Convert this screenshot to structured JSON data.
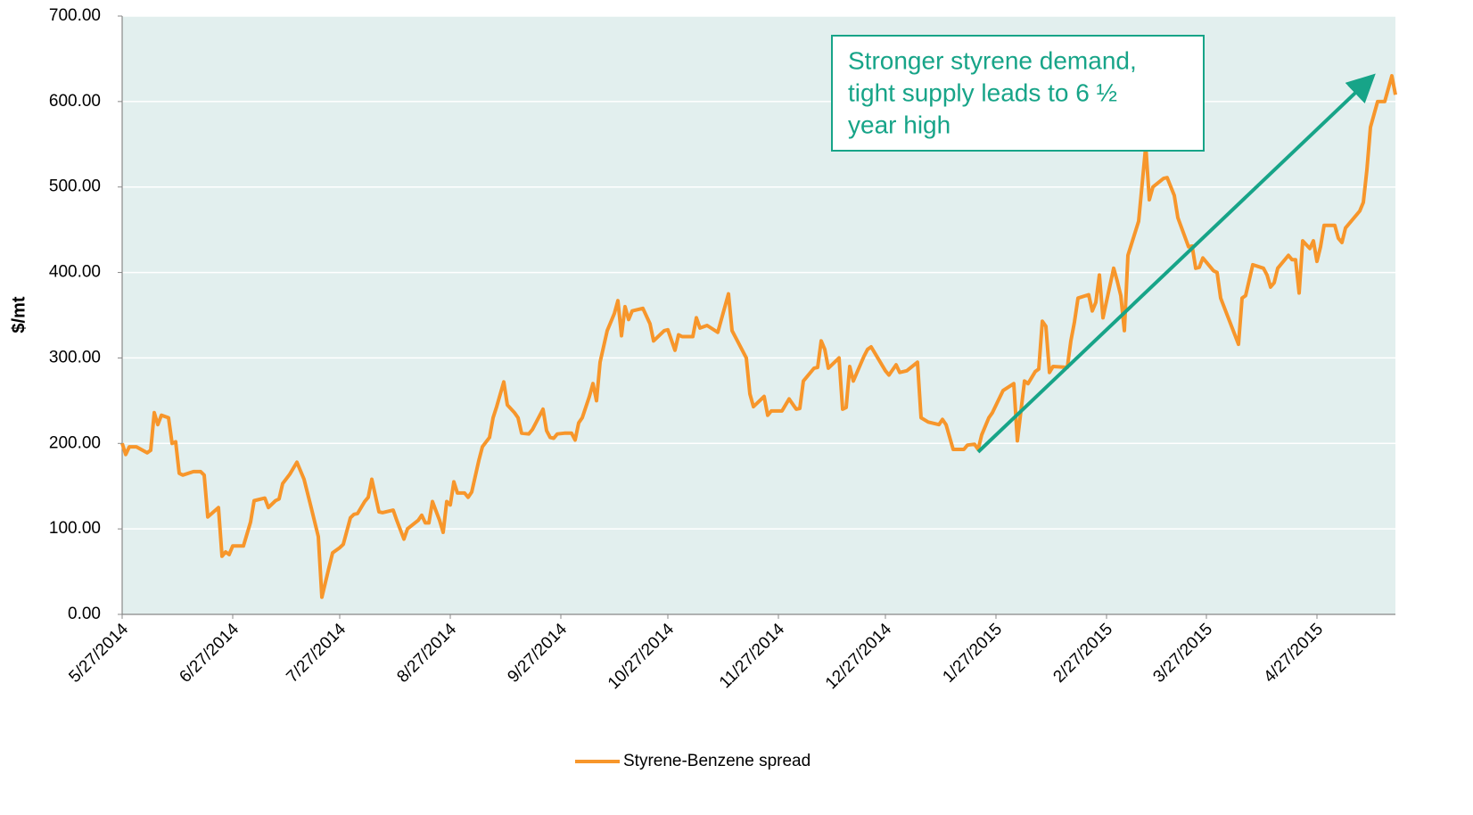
{
  "chart_data": {
    "type": "line",
    "ylabel": "$/mt",
    "xlim": [
      "2014-05-27",
      "2015-05-19"
    ],
    "xticks": [
      {
        "value": "2014-05-27",
        "label": "5/27/2014"
      },
      {
        "value": "2014-06-27",
        "label": "6/27/2014"
      },
      {
        "value": "2014-07-27",
        "label": "7/27/2014"
      },
      {
        "value": "2014-08-27",
        "label": "8/27/2014"
      },
      {
        "value": "2014-09-27",
        "label": "9/27/2014"
      },
      {
        "value": "2014-10-27",
        "label": "10/27/2014"
      },
      {
        "value": "2014-11-27",
        "label": "11/27/2014"
      },
      {
        "value": "2014-12-27",
        "label": "12/27/2014"
      },
      {
        "value": "2015-01-27",
        "label": "1/27/2015"
      },
      {
        "value": "2015-02-27",
        "label": "2/27/2015"
      },
      {
        "value": "2015-03-27",
        "label": "3/27/2015"
      },
      {
        "value": "2015-04-27",
        "label": "4/27/2015"
      }
    ],
    "ylim": [
      0,
      700
    ],
    "yticks": [
      {
        "value": 0,
        "label": "0.00"
      },
      {
        "value": 100,
        "label": "100.00"
      },
      {
        "value": 200,
        "label": "200.00"
      },
      {
        "value": 300,
        "label": "300.00"
      },
      {
        "value": 400,
        "label": "400.00"
      },
      {
        "value": 500,
        "label": "500.00"
      },
      {
        "value": 600,
        "label": "600.00"
      },
      {
        "value": 700,
        "label": "700.00"
      }
    ],
    "grid": true,
    "legend": "bottom",
    "x": [
      "2014-05-27",
      "2014-05-28",
      "2014-05-29",
      "2014-05-31",
      "2014-06-03",
      "2014-06-04",
      "2014-06-05",
      "2014-06-06",
      "2014-06-07",
      "2014-06-09",
      "2014-06-10",
      "2014-06-11",
      "2014-06-12",
      "2014-06-13",
      "2014-06-16",
      "2014-06-18",
      "2014-06-19",
      "2014-06-20",
      "2014-06-23",
      "2014-06-24",
      "2014-06-25",
      "2014-06-26",
      "2014-06-27",
      "2014-06-30",
      "2014-07-02",
      "2014-07-03",
      "2014-07-06",
      "2014-07-07",
      "2014-07-09",
      "2014-07-10",
      "2014-07-11",
      "2014-07-13",
      "2014-07-15",
      "2014-07-17",
      "2014-07-19",
      "2014-07-21",
      "2014-07-22",
      "2014-07-24",
      "2014-07-25",
      "2014-07-27",
      "2014-07-28",
      "2014-07-30",
      "2014-07-31",
      "2014-08-01",
      "2014-08-03",
      "2014-08-04",
      "2014-08-05",
      "2014-08-07",
      "2014-08-08",
      "2014-08-11",
      "2014-08-12",
      "2014-08-14",
      "2014-08-15",
      "2014-08-18",
      "2014-08-19",
      "2014-08-20",
      "2014-08-21",
      "2014-08-22",
      "2014-08-24",
      "2014-08-25",
      "2014-08-26",
      "2014-08-27",
      "2014-08-28",
      "2014-08-29",
      "2014-08-31",
      "2014-09-01",
      "2014-09-02",
      "2014-09-04",
      "2014-09-05",
      "2014-09-07",
      "2014-09-08",
      "2014-09-09",
      "2014-09-11",
      "2014-09-12",
      "2014-09-14",
      "2014-09-15",
      "2014-09-16",
      "2014-09-18",
      "2014-09-19",
      "2014-09-21",
      "2014-09-22",
      "2014-09-23",
      "2014-09-24",
      "2014-09-25",
      "2014-09-26",
      "2014-09-28",
      "2014-09-30",
      "2014-10-01",
      "2014-10-02",
      "2014-10-03",
      "2014-10-05",
      "2014-10-06",
      "2014-10-07",
      "2014-10-08",
      "2014-10-10",
      "2014-10-12",
      "2014-10-13",
      "2014-10-14",
      "2014-10-15",
      "2014-10-16",
      "2014-10-17",
      "2014-10-20",
      "2014-10-22",
      "2014-10-23",
      "2014-10-26",
      "2014-10-27",
      "2014-10-29",
      "2014-10-30",
      "2014-10-31",
      "2014-11-03",
      "2014-11-04",
      "2014-11-05",
      "2014-11-07",
      "2014-11-10",
      "2014-11-13",
      "2014-11-14",
      "2014-11-18",
      "2014-11-19",
      "2014-11-20",
      "2014-11-23",
      "2014-11-24",
      "2014-11-25",
      "2014-11-28",
      "2014-11-30",
      "2014-12-02",
      "2014-12-03",
      "2014-12-04",
      "2014-12-07",
      "2014-12-08",
      "2014-12-09",
      "2014-12-10",
      "2014-12-11",
      "2014-12-14",
      "2014-12-15",
      "2014-12-16",
      "2014-12-17",
      "2014-12-18",
      "2014-12-21",
      "2014-12-22",
      "2014-12-23",
      "2014-12-27",
      "2014-12-28",
      "2014-12-30",
      "2014-12-31",
      "2015-01-02",
      "2015-01-05",
      "2015-01-06",
      "2015-01-08",
      "2015-01-11",
      "2015-01-12",
      "2015-01-13",
      "2015-01-15",
      "2015-01-18",
      "2015-01-19",
      "2015-01-21",
      "2015-01-22",
      "2015-01-23",
      "2015-01-25",
      "2015-01-26",
      "2015-01-29",
      "2015-02-01",
      "2015-02-02",
      "2015-02-04",
      "2015-02-05",
      "2015-02-07",
      "2015-02-08",
      "2015-02-09",
      "2015-02-10",
      "2015-02-11",
      "2015-02-12",
      "2015-02-16",
      "2015-02-17",
      "2015-02-18",
      "2015-02-19",
      "2015-02-22",
      "2015-02-23",
      "2015-02-24",
      "2015-02-25",
      "2015-02-26",
      "2015-03-01",
      "2015-03-02",
      "2015-03-03",
      "2015-03-04",
      "2015-03-05",
      "2015-03-08",
      "2015-03-10",
      "2015-03-11",
      "2015-03-12",
      "2015-03-15",
      "2015-03-16",
      "2015-03-18",
      "2015-03-19",
      "2015-03-22",
      "2015-03-23",
      "2015-03-24",
      "2015-03-25",
      "2015-03-26",
      "2015-03-29",
      "2015-03-30",
      "2015-03-31",
      "2015-04-05",
      "2015-04-06",
      "2015-04-07",
      "2015-04-09",
      "2015-04-12",
      "2015-04-13",
      "2015-04-14",
      "2015-04-15",
      "2015-04-16",
      "2015-04-19",
      "2015-04-20",
      "2015-04-21",
      "2015-04-22",
      "2015-04-23",
      "2015-04-25",
      "2015-04-26",
      "2015-04-27",
      "2015-04-28",
      "2015-04-29",
      "2015-05-02",
      "2015-05-03",
      "2015-05-04",
      "2015-05-05",
      "2015-05-09",
      "2015-05-10",
      "2015-05-11",
      "2015-05-12",
      "2015-05-14",
      "2015-05-16",
      "2015-05-18",
      "2015-05-19"
    ],
    "series": [
      {
        "name": "Styrene-Benzene spread",
        "color": "#f7962b",
        "values": [
          200,
          187,
          196,
          196,
          189,
          192,
          236,
          222,
          233,
          230,
          200,
          202,
          165,
          163,
          167,
          167,
          163,
          114,
          125,
          68,
          73,
          70,
          80,
          80,
          108,
          133,
          136,
          125,
          133,
          135,
          153,
          164,
          178,
          158,
          125,
          91,
          20,
          55,
          72,
          78,
          82,
          113,
          117,
          118,
          132,
          137,
          158,
          120,
          119,
          122,
          110,
          88,
          100,
          110,
          116,
          107,
          107,
          132,
          110,
          96,
          132,
          128,
          155,
          142,
          142,
          137,
          143,
          180,
          196,
          207,
          230,
          243,
          272,
          245,
          236,
          230,
          212,
          211,
          216,
          232,
          240,
          215,
          207,
          206,
          211,
          212,
          212,
          204,
          224,
          230,
          255,
          270,
          250,
          295,
          332,
          352,
          367,
          326,
          360,
          345,
          355,
          358,
          340,
          320,
          332,
          333,
          309,
          327,
          325,
          325,
          347,
          335,
          338,
          330,
          375,
          332,
          300,
          258,
          243,
          255,
          233,
          238,
          238,
          252,
          240,
          241,
          273,
          288,
          289,
          320,
          310,
          288,
          300,
          240,
          242,
          290,
          273,
          302,
          310,
          313,
          285,
          280,
          292,
          283,
          285,
          295,
          230,
          225,
          222,
          228,
          222,
          193,
          193,
          198,
          199,
          193,
          210,
          230,
          236,
          262,
          270,
          203,
          273,
          270,
          284,
          287,
          343,
          337,
          283,
          290,
          289,
          320,
          342,
          370,
          374,
          355,
          365,
          397,
          347,
          405,
          390,
          373,
          332,
          420,
          460,
          548,
          485,
          500,
          510,
          511,
          490,
          464,
          430,
          431,
          405,
          406,
          417,
          402,
          400,
          370,
          316,
          370,
          373,
          409,
          405,
          397,
          383,
          388,
          405,
          420,
          415,
          415,
          376,
          437,
          428,
          437,
          413,
          430,
          455,
          455,
          440,
          435,
          452,
          472,
          482,
          520,
          570,
          600,
          600,
          630,
          608
        ]
      }
    ],
    "annotations": [
      {
        "text": [
          "Stronger styrene demand,",
          "tight supply leads to 6 ½",
          "year high"
        ],
        "color": "#17a488",
        "arrow": {
          "from": [
            "2015-01-22",
            190
          ],
          "to": [
            "2015-05-12",
            627
          ]
        }
      }
    ]
  }
}
